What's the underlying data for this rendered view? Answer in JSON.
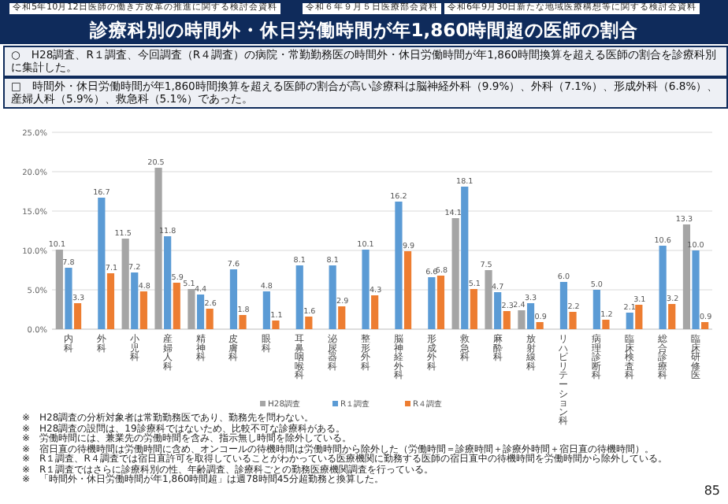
{
  "chart_data": {
    "type": "bar",
    "title": "診療科別の時間外・休日労働時間が年1,860時間超の医師の割合",
    "subtitle": "○　H28調査、R１調査、今回調査（R４調査）の病院・常勤勤務医の時間外・休日労働時間が年1,860時間換算を超える医師の割合を診療科別に集計した。",
    "categories": [
      "内科",
      "外科",
      "小児科",
      "産婦人科",
      "精神科",
      "皮膚科",
      "眼科",
      "耳鼻咽喉科",
      "泌尿器科",
      "整形外科",
      "脳神経外科",
      "形成外科",
      "救急科",
      "麻酔科",
      "放射線科",
      "リハビリテーション科",
      "病理診断科",
      "臨床検査科",
      "総合診療科",
      "臨床研修医"
    ],
    "series": [
      {
        "name": "H28調査",
        "color": "#a5a5a5",
        "values": [
          10.1,
          null,
          11.5,
          20.5,
          5.1,
          null,
          null,
          null,
          null,
          null,
          null,
          null,
          14.1,
          7.5,
          2.4,
          null,
          null,
          null,
          null,
          13.3
        ],
        "value_labels": [
          "10.1",
          null,
          "11.5",
          "20.5",
          "5.1",
          null,
          null,
          null,
          null,
          null,
          null,
          null,
          "14.1",
          "7.5",
          "2.4",
          null,
          null,
          null,
          null,
          "13.3"
        ]
      },
      {
        "name": "R１調査",
        "color": "#5b9bd5",
        "values": [
          7.8,
          16.7,
          7.2,
          11.8,
          4.4,
          7.6,
          4.8,
          8.1,
          8.1,
          10.1,
          16.2,
          6.6,
          18.1,
          4.7,
          3.3,
          6.0,
          5.0,
          2.1,
          10.6,
          10.0
        ],
        "value_labels": [
          "7.8",
          "16.7",
          "7.2",
          "11.8",
          "4.4",
          "7.6",
          "4.8",
          "8.1",
          "8.1",
          "10.1",
          "16.2",
          "6.6",
          "18.1",
          "4.7",
          "3.3",
          "6.0",
          "5.0",
          "2.1",
          "10.6",
          "10.0"
        ]
      },
      {
        "name": "R４調査",
        "color": "#ed7d31",
        "values": [
          3.3,
          7.1,
          4.8,
          5.9,
          2.6,
          1.8,
          1.1,
          1.6,
          2.9,
          4.3,
          9.9,
          6.8,
          5.1,
          2.3,
          0.9,
          2.2,
          1.2,
          3.1,
          3.2,
          0.9
        ],
        "value_labels": [
          "3.3",
          "7.1",
          "4.8",
          "5.9",
          "2.6",
          "1.8",
          "1.1",
          "1.6",
          "2.9",
          "4.3",
          "9.9",
          "6.8",
          "5.1",
          "2.3",
          "0.9",
          "2.2",
          "1.2",
          "3.1",
          "3.2",
          "0.9"
        ]
      }
    ],
    "ylim": [
      0,
      25
    ],
    "yticks": [
      {
        "value": 0,
        "label": "0.0%"
      },
      {
        "value": 5,
        "label": "5.0%"
      },
      {
        "value": 10,
        "label": "10.0%"
      },
      {
        "value": 15,
        "label": "15.0%"
      },
      {
        "value": 20,
        "label": "20.0%"
      },
      {
        "value": 25,
        "label": "25.0%"
      }
    ],
    "grid": "y",
    "legend": "bottom",
    "annotations": [
      "令和5年10月12日医師の働き方改革の推進に関する検討会資料",
      "令和６年９月５日医療部会資料",
      "令和6年9月30日新たな地域医療構想等に関する検討会資料",
      "□　時間外・休日労働時間が年1,860時間換算を超える医師の割合が高い診療科は脳神経外科（9.9%）、外科（7.1%）、形成外科（6.8%）、産婦人科（5.9%）、救急科（5.1%）であった。",
      "※　H28調査の分析対象者は常勤勤務医であり、勤務先を問わない。",
      "※　H28調査の設問は、19診療科ではないため、比較不可な診療科がある。",
      "※　労働時間には、兼業先の労働時間を含み、指示無し時間を除外している。",
      "※　宿日直の待機時間は労働時間に含め、オンコールの待機時間は労働時間から除外した（労働時間＝診療時間＋診療外時間＋宿日直の待機時間）。",
      "※　R１調査、R４調査では宿日直許可を取得していることがわかっている医療機関に勤務する医師の宿日直中の待機時間を労働時間から除外している。",
      "※　R１調査ではさらに診療科別の性、年齢調査、診療科ごとの勤務医療機関調査を行っている。",
      "※　「時間外・休日労働時間が年1,860時間超」は週78時間45分超勤務と換算した。",
      "85"
    ]
  }
}
